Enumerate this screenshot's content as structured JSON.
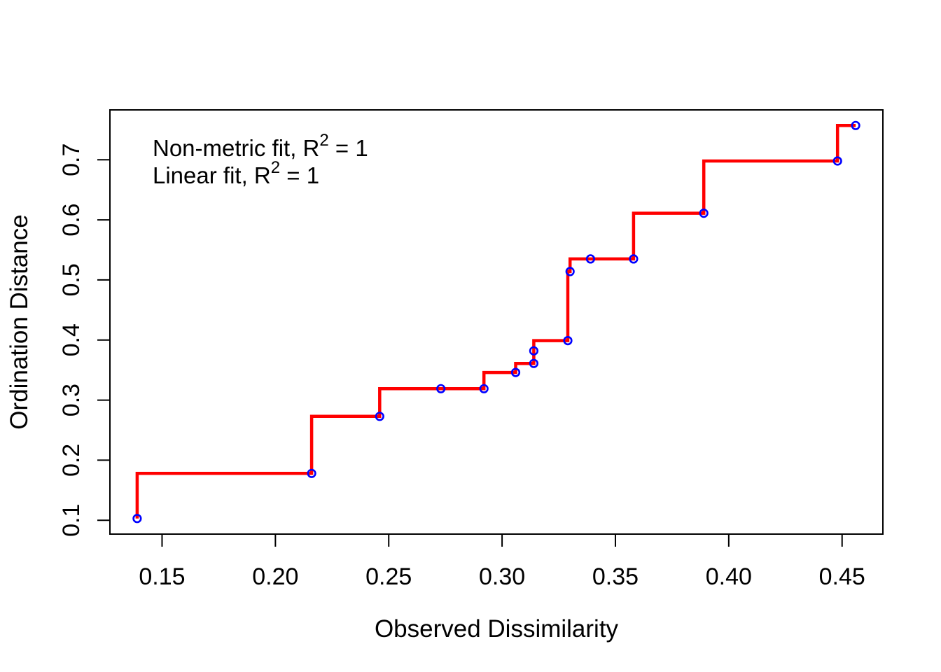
{
  "chart_data": {
    "type": "scatter",
    "title": "",
    "xlabel": "Observed Dissimilarity",
    "ylabel": "Ordination Distance",
    "points": [
      {
        "x": 0.139,
        "y": 0.103
      },
      {
        "x": 0.216,
        "y": 0.178
      },
      {
        "x": 0.246,
        "y": 0.273
      },
      {
        "x": 0.273,
        "y": 0.319
      },
      {
        "x": 0.292,
        "y": 0.319
      },
      {
        "x": 0.306,
        "y": 0.346
      },
      {
        "x": 0.314,
        "y": 0.361
      },
      {
        "x": 0.314,
        "y": 0.382
      },
      {
        "x": 0.329,
        "y": 0.399
      },
      {
        "x": 0.33,
        "y": 0.514
      },
      {
        "x": 0.339,
        "y": 0.535
      },
      {
        "x": 0.358,
        "y": 0.535
      },
      {
        "x": 0.389,
        "y": 0.611
      },
      {
        "x": 0.448,
        "y": 0.698
      },
      {
        "x": 0.456,
        "y": 0.757
      }
    ],
    "series": [
      {
        "name": "observed-vs-ordination-points",
        "type": "scatter",
        "marker": "open-circle",
        "color": "#0000ff"
      },
      {
        "name": "monotone-regression-step-fit",
        "type": "step-line",
        "step": "vertical-then-horizontal",
        "color": "#ff0000"
      }
    ],
    "xlim": [
      0.127,
      0.468
    ],
    "ylim": [
      0.077,
      0.783
    ],
    "x_ticks": {
      "values": [
        0.15,
        0.2,
        0.25,
        0.3,
        0.35,
        0.4,
        0.45
      ],
      "labels": [
        "0.15",
        "0.20",
        "0.25",
        "0.30",
        "0.35",
        "0.40",
        "0.45"
      ]
    },
    "y_ticks": {
      "values": [
        0.1,
        0.2,
        0.3,
        0.4,
        0.5,
        0.6,
        0.7
      ],
      "labels": [
        "0.1",
        "0.2",
        "0.3",
        "0.4",
        "0.5",
        "0.6",
        "0.7"
      ]
    },
    "grid": false,
    "legend_position": "none",
    "annotations": [
      {
        "prefix": "Non-metric fit, R",
        "sup": "2",
        "suffix": " = 1"
      },
      {
        "prefix": "Linear fit, R",
        "sup": "2",
        "suffix": " = 1"
      }
    ],
    "colors": {
      "points": "#0000ff",
      "fit_line": "#ff0000",
      "axis": "#000000",
      "text": "#000000",
      "background": "#ffffff"
    }
  }
}
